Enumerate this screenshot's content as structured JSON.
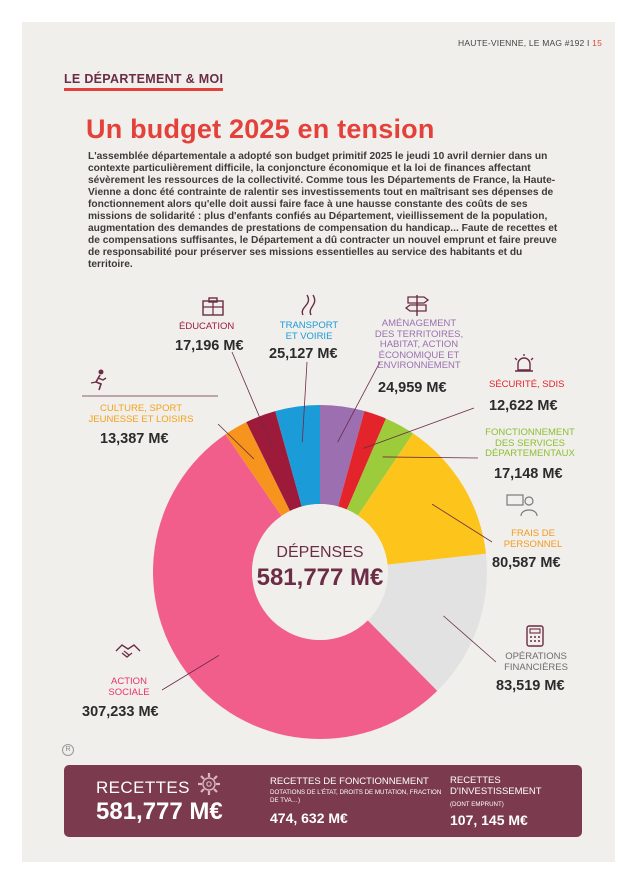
{
  "header": {
    "magazine": "HAUTE-VIENNE, LE MAG #192",
    "separator": "I",
    "page": "15"
  },
  "rubric": "LE DÉPARTEMENT & MOI",
  "title": "Un budget 2025 en tension",
  "intro": "L'assemblée départementale a adopté son budget primitif 2025 le jeudi 10 avril dernier dans un contexte particulièrement difficile, la conjoncture économique et la loi de finances affectant sévèrement les ressources de la collectivité. Comme tous les Départements de France, la Haute-Vienne a donc été contrainte de ralentir ses investissements tout en maîtrisant ses dépenses de fonctionnement alors qu'elle doit aussi faire face à une hausse constante des coûts de ses missions de solidarité : plus d'enfants confiés au Département, vieillissement de la population, augmentation des demandes de prestations de compensation du handicap... Faute de recettes et de compensations suffisantes, le Département a dû contracter un nouvel emprunt et faire preuve de responsabilité pour préserver ses missions essentielles au service des habitants et du territoire.",
  "chart_data": {
    "type": "pie",
    "title": "DÉPENSES",
    "total": "581,777 M€",
    "series": [
      {
        "name": "AMÉNAGEMENT DES TERRITOIRES, HABITAT, ACTION ÉCONOMIQUE ET ENVIRONNEMENT",
        "value": 24.959,
        "label": "24,959 M€",
        "color": "#9b6fb0",
        "label_color": "#9b6fb0"
      },
      {
        "name": "SÉCURITÉ, SDIS",
        "value": 12.622,
        "label": "12,622 M€",
        "color": "#e3242b",
        "label_color": "#e3242b"
      },
      {
        "name": "FONCTIONNEMENT DES SERVICES DÉPARTEMENTAUX",
        "value": 17.148,
        "label": "17,148 M€",
        "color": "#9ccb3b",
        "label_color": "#8cbf2f"
      },
      {
        "name": "FRAIS DE PERSONNEL",
        "value": 80.587,
        "label": "80,587 M€",
        "color": "#fdc41c",
        "label_color": "#f39a1f"
      },
      {
        "name": "OPÉRATIONS FINANCIÈRES",
        "value": 83.519,
        "label": "83,519 M€",
        "color": "#e2e2e2",
        "label_color": "#6d6d6d"
      },
      {
        "name": "ACTION SOCIALE",
        "value": 307.233,
        "label": "307,233 M€",
        "color": "#f25e8b",
        "label_color": "#e8336b"
      },
      {
        "name": "CULTURE, SPORT JEUNESSE ET LOISIRS",
        "value": 13.387,
        "label": "13,387 M€",
        "color": "#f7941d",
        "label_color": "#f3a21b"
      },
      {
        "name": "ÉDUCATION",
        "value": 17.196,
        "label": "17,196 M€",
        "color": "#9e1a3b",
        "label_color": "#9e1a3b"
      },
      {
        "name": "TRANSPORT ET VOIRIE",
        "value": 25.127,
        "label": "25,127 M€",
        "color": "#1b9bd8",
        "label_color": "#1b9bd8"
      }
    ]
  },
  "labels": {
    "amenagement": [
      "AMÉNAGEMENT",
      "DES TERRITOIRES,",
      "HABITAT, ACTION",
      "ÉCONOMIQUE ET",
      "ENVIRONNEMENT"
    ],
    "securite": [
      "SÉCURITÉ, SDIS"
    ],
    "fonctionnement": [
      "FONCTIONNEMENT",
      "DES SERVICES",
      "DÉPARTEMENTAUX"
    ],
    "personnel": [
      "FRAIS DE",
      "PERSONNEL"
    ],
    "financieres": [
      "OPÉRATIONS",
      "FINANCIÈRES"
    ],
    "sociale": [
      "ACTION",
      "SOCIALE"
    ],
    "culture": [
      "CULTURE, SPORT",
      "JEUNESSE ET LOISIRS"
    ],
    "education": [
      "ÉDUCATION"
    ],
    "transport": [
      "TRANSPORT",
      "ET VOIRIE"
    ]
  },
  "footer": {
    "recettes_label": "RECETTES",
    "recettes_total": "581,777 M€",
    "fonct_title": "RECETTES DE FONCTIONNEMENT",
    "fonct_detail": "DOTATIONS DE L'ÉTAT, DROITS DE MUTATION, FRACTION DE TVA…)",
    "fonct_value": "474, 632 M€",
    "invest_title": "RECETTES D'INVESTISSEMENT",
    "invest_detail": "(DONT EMPRUNT)",
    "invest_value": "107, 145 M€"
  },
  "mark": "R"
}
